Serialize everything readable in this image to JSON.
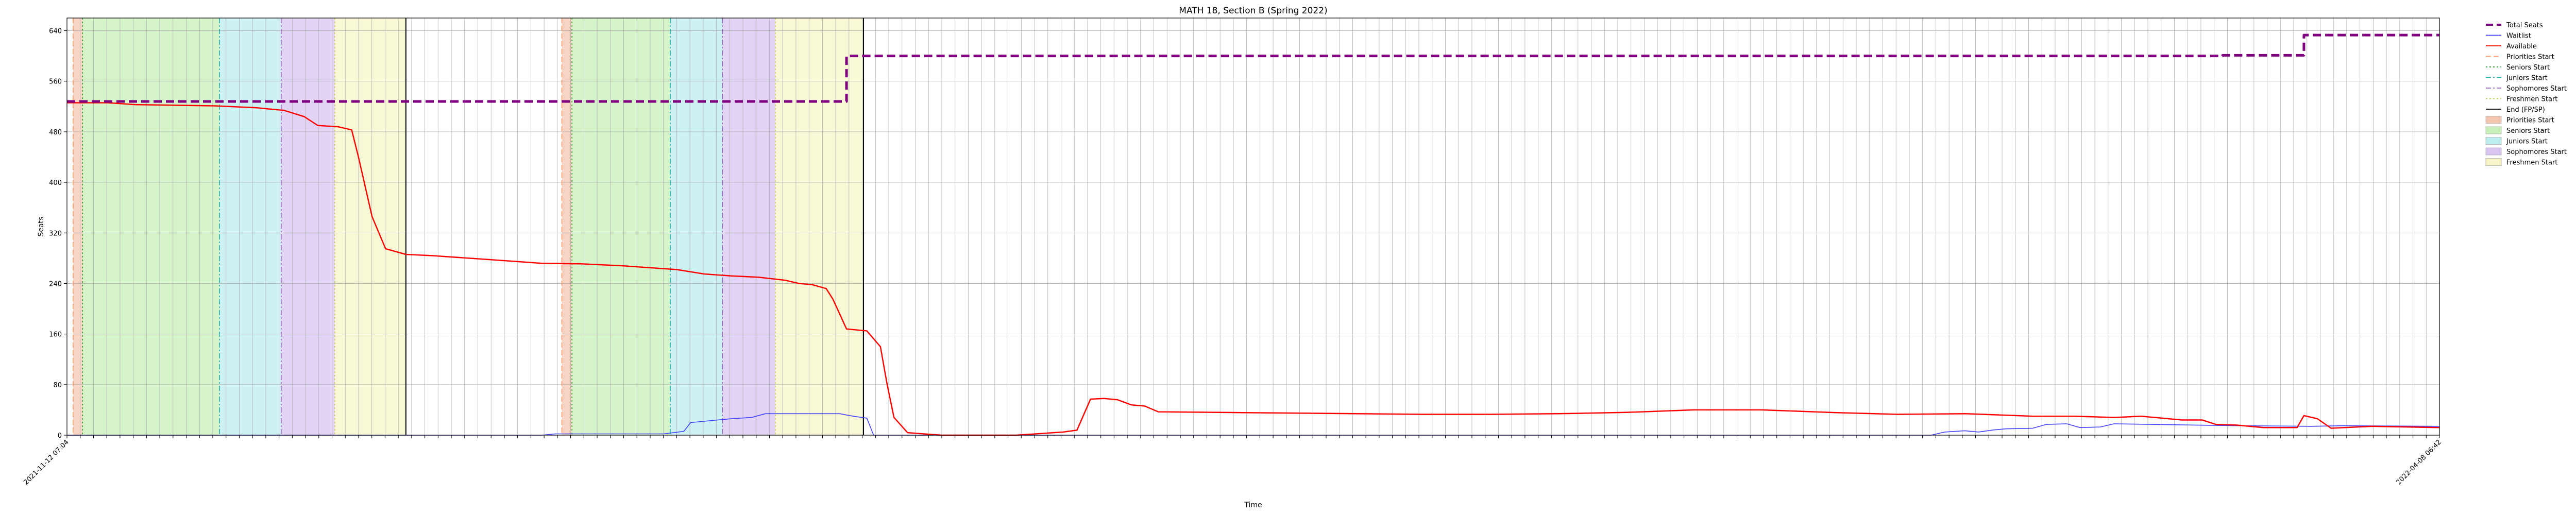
{
  "chart_data": {
    "type": "line",
    "title": "MATH 18, Section B (Spring 2022)",
    "xlabel": "Time",
    "ylabel": "Seats",
    "ylim": [
      0,
      660
    ],
    "yticks": [
      0,
      80,
      160,
      240,
      320,
      400,
      480,
      560,
      640
    ],
    "grid": true,
    "legend_position": "outside-right",
    "x_start_label": "2021-11-12 07:04",
    "x_end_label": "2022-04-08 06:42",
    "x_tick_count": 180,
    "series": [
      {
        "name": "Total Seats",
        "color": "#800080",
        "style": "dashed",
        "points": [
          [
            0,
            528
          ],
          [
            115,
            528
          ],
          [
            115,
            600
          ],
          [
            318,
            600
          ],
          [
            318,
            601
          ],
          [
            330,
            601
          ],
          [
            330,
            633
          ],
          [
            350,
            633
          ]
        ]
      },
      {
        "name": "Waitlist",
        "color": "#4040ff",
        "style": "solid",
        "points": [
          [
            0,
            0
          ],
          [
            70,
            0
          ],
          [
            72,
            2
          ],
          [
            88,
            2
          ],
          [
            91,
            6
          ],
          [
            92,
            20
          ],
          [
            94,
            22
          ],
          [
            96,
            24
          ],
          [
            98,
            26
          ],
          [
            101,
            28
          ],
          [
            103,
            34
          ],
          [
            106,
            34
          ],
          [
            111,
            34
          ],
          [
            112,
            34
          ],
          [
            114,
            34
          ],
          [
            116,
            30
          ],
          [
            118,
            27
          ],
          [
            119,
            0
          ],
          [
            275,
            0
          ],
          [
            277,
            5
          ],
          [
            280,
            7
          ],
          [
            282,
            5
          ],
          [
            284,
            8
          ],
          [
            286,
            10
          ],
          [
            290,
            11
          ],
          [
            292,
            17
          ],
          [
            295,
            18
          ],
          [
            297,
            12
          ],
          [
            300,
            13
          ],
          [
            302,
            18
          ],
          [
            320,
            15
          ],
          [
            331,
            14
          ],
          [
            336,
            15
          ],
          [
            350,
            14
          ]
        ]
      },
      {
        "name": "Available",
        "color": "#ff0000",
        "style": "solid",
        "points": [
          [
            0,
            526
          ],
          [
            6,
            526
          ],
          [
            10,
            523
          ],
          [
            22,
            521
          ],
          [
            28,
            518
          ],
          [
            32,
            514
          ],
          [
            35,
            504
          ],
          [
            37,
            490
          ],
          [
            40,
            488
          ],
          [
            42,
            483
          ],
          [
            43,
            440
          ],
          [
            45,
            346
          ],
          [
            47,
            295
          ],
          [
            50,
            286
          ],
          [
            54,
            284
          ],
          [
            62,
            278
          ],
          [
            66,
            275
          ],
          [
            70,
            272
          ],
          [
            76,
            271
          ],
          [
            82,
            268
          ],
          [
            90,
            262
          ],
          [
            94,
            255
          ],
          [
            98,
            252
          ],
          [
            102,
            250
          ],
          [
            106,
            245
          ],
          [
            108,
            240
          ],
          [
            110,
            238
          ],
          [
            112,
            232
          ],
          [
            113,
            215
          ],
          [
            115,
            168
          ],
          [
            118,
            165
          ],
          [
            120,
            140
          ],
          [
            121,
            80
          ],
          [
            122,
            28
          ],
          [
            124,
            4
          ],
          [
            129,
            0
          ],
          [
            136,
            0
          ],
          [
            140,
            0
          ],
          [
            147,
            5
          ],
          [
            149,
            8
          ],
          [
            151,
            57
          ],
          [
            153,
            58
          ],
          [
            155,
            56
          ],
          [
            157,
            48
          ],
          [
            159,
            46
          ],
          [
            161,
            37
          ],
          [
            170,
            36
          ],
          [
            180,
            35
          ],
          [
            200,
            33
          ],
          [
            210,
            33
          ],
          [
            220,
            34
          ],
          [
            230,
            36
          ],
          [
            240,
            40
          ],
          [
            250,
            40
          ],
          [
            260,
            36
          ],
          [
            270,
            33
          ],
          [
            280,
            34
          ],
          [
            290,
            30
          ],
          [
            296,
            30
          ],
          [
            302,
            28
          ],
          [
            306,
            30
          ],
          [
            312,
            24
          ],
          [
            315,
            24
          ],
          [
            317,
            17
          ],
          [
            320,
            16
          ],
          [
            322,
            14
          ],
          [
            324,
            12
          ],
          [
            329,
            12
          ],
          [
            330,
            31
          ],
          [
            332,
            26
          ],
          [
            334,
            11
          ],
          [
            336,
            12
          ],
          [
            340,
            14
          ],
          [
            345,
            13
          ],
          [
            350,
            12
          ]
        ]
      }
    ],
    "vlines": [
      {
        "name": "Priorities Start",
        "color": "#ff9966",
        "style": "dashed"
      },
      {
        "name": "Seniors Start",
        "color": "#2ca02c",
        "style": "dotted"
      },
      {
        "name": "Juniors Start",
        "color": "#20b2aa",
        "style": "dashdot"
      },
      {
        "name": "Sophomores Start",
        "color": "#9467bd",
        "style": "dashdot"
      },
      {
        "name": "Freshmen Start",
        "color": "#c8c85a",
        "style": "dotted"
      },
      {
        "name": "End (FP/SP)",
        "color": "#000000",
        "style": "solid"
      }
    ],
    "shaded_periods": [
      {
        "name": "Priorities Start",
        "color": "#f5c6b0",
        "start": 0.9,
        "end": 2.3
      },
      {
        "name": "Seniors Start",
        "color": "#c8f0b8",
        "start": 2.3,
        "end": 22.5
      },
      {
        "name": "Juniors Start",
        "color": "#bdeef0",
        "start": 22.5,
        "end": 31.6
      },
      {
        "name": "Sophomores Start",
        "color": "#d8c6f0",
        "start": 31.6,
        "end": 39.5
      },
      {
        "name": "Freshmen Start",
        "color": "#f5f5c8",
        "start": 39.5,
        "end": 50.0
      },
      {
        "name": "Priorities Start",
        "color": "#f5c6b0",
        "start": 73.0,
        "end": 74.5
      },
      {
        "name": "Seniors Start",
        "color": "#c8f0b8",
        "start": 74.5,
        "end": 89.0
      },
      {
        "name": "Juniors Start",
        "color": "#bdeef0",
        "start": 89.0,
        "end": 96.7
      },
      {
        "name": "Sophomores Start",
        "color": "#d8c6f0",
        "start": 96.7,
        "end": 104.5
      },
      {
        "name": "Freshmen Start",
        "color": "#f5f5c8",
        "start": 104.5,
        "end": 117.5
      }
    ],
    "vline_positions": [
      {
        "name": "Priorities Start",
        "x": 0.9
      },
      {
        "name": "Seniors Start",
        "x": 2.3
      },
      {
        "name": "Juniors Start",
        "x": 22.5
      },
      {
        "name": "Sophomores Start",
        "x": 31.6
      },
      {
        "name": "Freshmen Start",
        "x": 39.5
      },
      {
        "name": "End (FP/SP)",
        "x": 50.0
      },
      {
        "name": "Priorities Start",
        "x": 73.0
      },
      {
        "name": "Seniors Start",
        "x": 74.5
      },
      {
        "name": "Juniors Start",
        "x": 89.0
      },
      {
        "name": "Sophomores Start",
        "x": 96.7
      },
      {
        "name": "Freshmen Start",
        "x": 104.5
      },
      {
        "name": "End (FP/SP)",
        "x": 117.5
      }
    ],
    "legend": [
      {
        "label": "Total Seats",
        "kind": "line",
        "color": "#800080",
        "style": "dashed-thick"
      },
      {
        "label": "Waitlist",
        "kind": "line",
        "color": "#4040ff",
        "style": "solid"
      },
      {
        "label": "Available",
        "kind": "line",
        "color": "#ff0000",
        "style": "solid"
      },
      {
        "label": "Priorities Start",
        "kind": "line",
        "color": "#ff9966",
        "style": "dashed"
      },
      {
        "label": "Seniors Start",
        "kind": "line",
        "color": "#2ca02c",
        "style": "dotted"
      },
      {
        "label": "Juniors Start",
        "kind": "line",
        "color": "#20b2aa",
        "style": "dashdot"
      },
      {
        "label": "Sophomores Start",
        "kind": "line",
        "color": "#9467bd",
        "style": "dashdot"
      },
      {
        "label": "Freshmen Start",
        "kind": "line",
        "color": "#c8c85a",
        "style": "dotted"
      },
      {
        "label": "End (FP/SP)",
        "kind": "line",
        "color": "#000000",
        "style": "solid"
      },
      {
        "label": "Priorities Start",
        "kind": "patch",
        "color": "#f5c6b0"
      },
      {
        "label": "Seniors Start",
        "kind": "patch",
        "color": "#c8f0b8"
      },
      {
        "label": "Juniors Start",
        "kind": "patch",
        "color": "#bdeef0"
      },
      {
        "label": "Sophomores Start",
        "kind": "patch",
        "color": "#d8c6f0"
      },
      {
        "label": "Freshmen Start",
        "kind": "patch",
        "color": "#f5f5c8"
      }
    ]
  }
}
